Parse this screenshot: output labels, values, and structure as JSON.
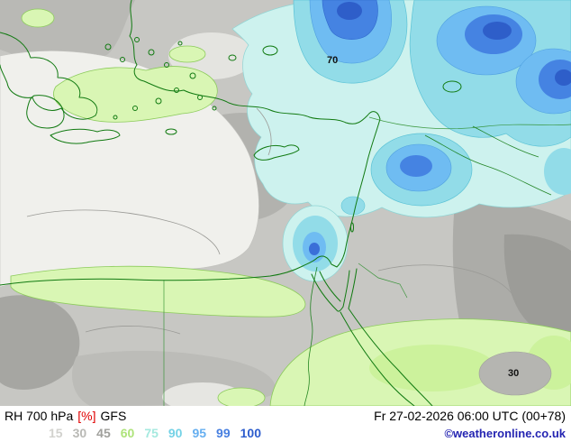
{
  "title": {
    "parameter": "RH 700 hPa",
    "unit": "[%]",
    "model": "GFS"
  },
  "footer": {
    "valid_time": "Fr 27-02-2026 06:00 UTC (00+78)",
    "copyright": "©weatheronline.co.uk"
  },
  "legend": {
    "values": [
      "15",
      "30",
      "45",
      "60",
      "75",
      "90",
      "95",
      "99",
      "100"
    ],
    "colors": [
      "#d2d2ce",
      "#b9b9b5",
      "#a0a09c",
      "#aee37a",
      "#a5e9df",
      "#74d2e6",
      "#66aff0",
      "#477fe0",
      "#2c5ccd"
    ]
  },
  "map": {
    "labels": {
      "high": "70",
      "low": "30"
    },
    "fill_colors": {
      "base_gray": "#c7c7c3",
      "dry_white": "#f0f0ec",
      "green": "#d9f6b4",
      "cyan_pale": "#cdf2ee",
      "cyan": "#92dce8",
      "blue_light": "#6fbcf2",
      "blue": "#4583e2",
      "blue_dark": "#2e5ec9",
      "coastline_green": "#117a11"
    }
  },
  "colors": {
    "unit_red": "#e00000",
    "copyright_blue": "#2424b2"
  }
}
